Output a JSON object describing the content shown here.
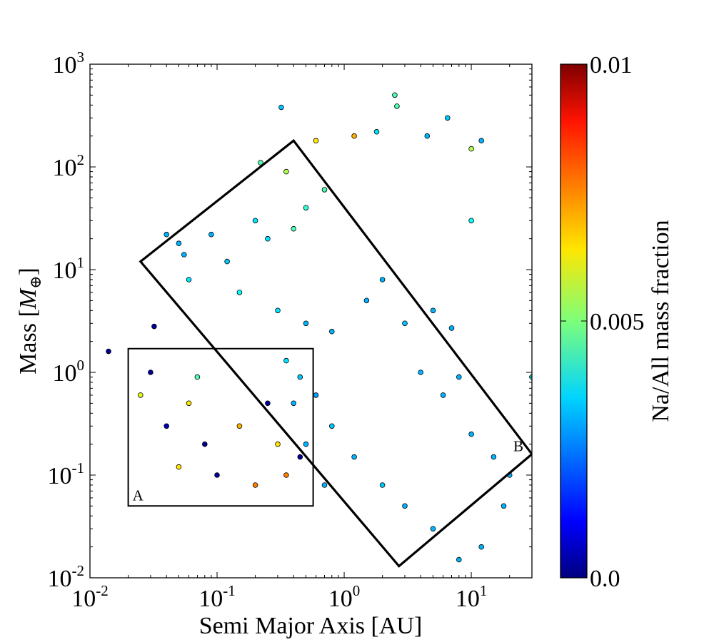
{
  "chart_data": {
    "type": "scatter",
    "xlabel": "Semi Major Axis [AU]",
    "ylabel_text": "Mass [",
    "ylabel_symbol": "M",
    "ylabel_sub": "⊕",
    "ylabel_end": "]",
    "x_scale": "log",
    "y_scale": "log",
    "xlim": [
      0.01,
      30
    ],
    "ylim": [
      0.01,
      1000
    ],
    "x_ticks": [
      {
        "base": "10",
        "exp": "-2",
        "value": 0.01
      },
      {
        "base": "10",
        "exp": "-1",
        "value": 0.1
      },
      {
        "base": "10",
        "exp": "0",
        "value": 1
      },
      {
        "base": "10",
        "exp": "1",
        "value": 10
      }
    ],
    "y_ticks": [
      {
        "base": "10",
        "exp": "-2",
        "value": 0.01
      },
      {
        "base": "10",
        "exp": "-1",
        "value": 0.1
      },
      {
        "base": "10",
        "exp": "0",
        "value": 1
      },
      {
        "base": "10",
        "exp": "1",
        "value": 10
      },
      {
        "base": "10",
        "exp": "2",
        "value": 100
      },
      {
        "base": "10",
        "exp": "3",
        "value": 1000
      }
    ],
    "colorbar": {
      "label": "Na/All mass fraction",
      "range": [
        0.0,
        0.01
      ],
      "ticks": [
        {
          "label": "0.0",
          "value": 0.0
        },
        {
          "label": "0.005",
          "value": 0.005
        },
        {
          "label": "0.01",
          "value": 0.01
        }
      ],
      "colormap": "jet"
    },
    "regions": [
      {
        "label": "A",
        "shape": "rectangle",
        "corners": [
          [
            0.02,
            0.05
          ],
          [
            0.57,
            0.05
          ],
          [
            0.57,
            1.7
          ],
          [
            0.02,
            1.7
          ]
        ]
      },
      {
        "label": "B",
        "shape": "rotated-rectangle",
        "corners": [
          [
            0.025,
            12
          ],
          [
            0.4,
            180
          ],
          [
            30,
            0.16
          ],
          [
            2.7,
            0.013
          ]
        ]
      }
    ],
    "grid": false,
    "series": [
      {
        "points": [
          [
            0.014,
            1.6,
            0.0002
          ],
          [
            0.032,
            2.8,
            0.0003
          ],
          [
            0.04,
            22,
            0.003
          ],
          [
            0.05,
            18,
            0.003
          ],
          [
            0.055,
            14,
            0.003
          ],
          [
            0.06,
            8,
            0.0035
          ],
          [
            0.09,
            22,
            0.003
          ],
          [
            0.12,
            12,
            0.0032
          ],
          [
            0.2,
            30,
            0.0035
          ],
          [
            0.32,
            380,
            0.0032
          ],
          [
            0.22,
            110,
            0.0045
          ],
          [
            0.35,
            90,
            0.0055
          ],
          [
            0.6,
            180,
            0.0065
          ],
          [
            1.2,
            200,
            0.007
          ],
          [
            1.8,
            220,
            0.0035
          ],
          [
            2.5,
            500,
            0.0045
          ],
          [
            2.6,
            390,
            0.0045
          ],
          [
            4.5,
            200,
            0.003
          ],
          [
            6.5,
            300,
            0.0032
          ],
          [
            12,
            180,
            0.003
          ],
          [
            10,
            30,
            0.0038
          ],
          [
            10,
            150,
            0.0055
          ],
          [
            0.7,
            60,
            0.0045
          ],
          [
            0.5,
            40,
            0.0042
          ],
          [
            0.4,
            25,
            0.0045
          ],
          [
            0.25,
            20,
            0.0035
          ],
          [
            0.15,
            6,
            0.0038
          ],
          [
            0.3,
            4,
            0.0035
          ],
          [
            0.5,
            3,
            0.003
          ],
          [
            0.8,
            2.5,
            0.003
          ],
          [
            1.5,
            5,
            0.003
          ],
          [
            2,
            8,
            0.003
          ],
          [
            3,
            3,
            0.0032
          ],
          [
            5,
            4,
            0.003
          ],
          [
            7,
            2.7,
            0.003
          ],
          [
            4,
            1.0,
            0.003
          ],
          [
            6,
            0.6,
            0.003
          ],
          [
            8,
            0.9,
            0.003
          ],
          [
            10,
            0.25,
            0.003
          ],
          [
            15,
            0.15,
            0.003
          ],
          [
            30,
            0.9,
            0.004
          ],
          [
            20,
            0.1,
            0.003
          ],
          [
            18,
            0.05,
            0.003
          ],
          [
            12,
            0.02,
            0.003
          ],
          [
            8,
            0.015,
            0.003
          ],
          [
            5,
            0.03,
            0.003
          ],
          [
            3,
            0.05,
            0.003
          ],
          [
            2,
            0.08,
            0.0032
          ],
          [
            1.2,
            0.15,
            0.003
          ],
          [
            0.8,
            0.3,
            0.0032
          ],
          [
            0.6,
            0.6,
            0.0028
          ],
          [
            0.45,
            0.9,
            0.0032
          ],
          [
            0.35,
            1.3,
            0.0035
          ],
          [
            0.4,
            0.5,
            0.003
          ],
          [
            0.5,
            0.2,
            0.003
          ],
          [
            0.7,
            0.08,
            0.003
          ],
          [
            0.03,
            1.0,
            0.0003
          ],
          [
            0.025,
            0.6,
            0.006
          ],
          [
            0.04,
            0.3,
            0.0005
          ],
          [
            0.06,
            0.5,
            0.0065
          ],
          [
            0.08,
            0.2,
            0.0002
          ],
          [
            0.1,
            0.1,
            0.0003
          ],
          [
            0.15,
            0.3,
            0.007
          ],
          [
            0.2,
            0.08,
            0.0075
          ],
          [
            0.25,
            0.5,
            0.0003
          ],
          [
            0.3,
            0.2,
            0.0065
          ],
          [
            0.35,
            0.1,
            0.0075
          ],
          [
            0.45,
            0.15,
            0.0002
          ],
          [
            0.05,
            0.12,
            0.0065
          ],
          [
            0.07,
            0.9,
            0.0045
          ]
        ]
      }
    ]
  }
}
